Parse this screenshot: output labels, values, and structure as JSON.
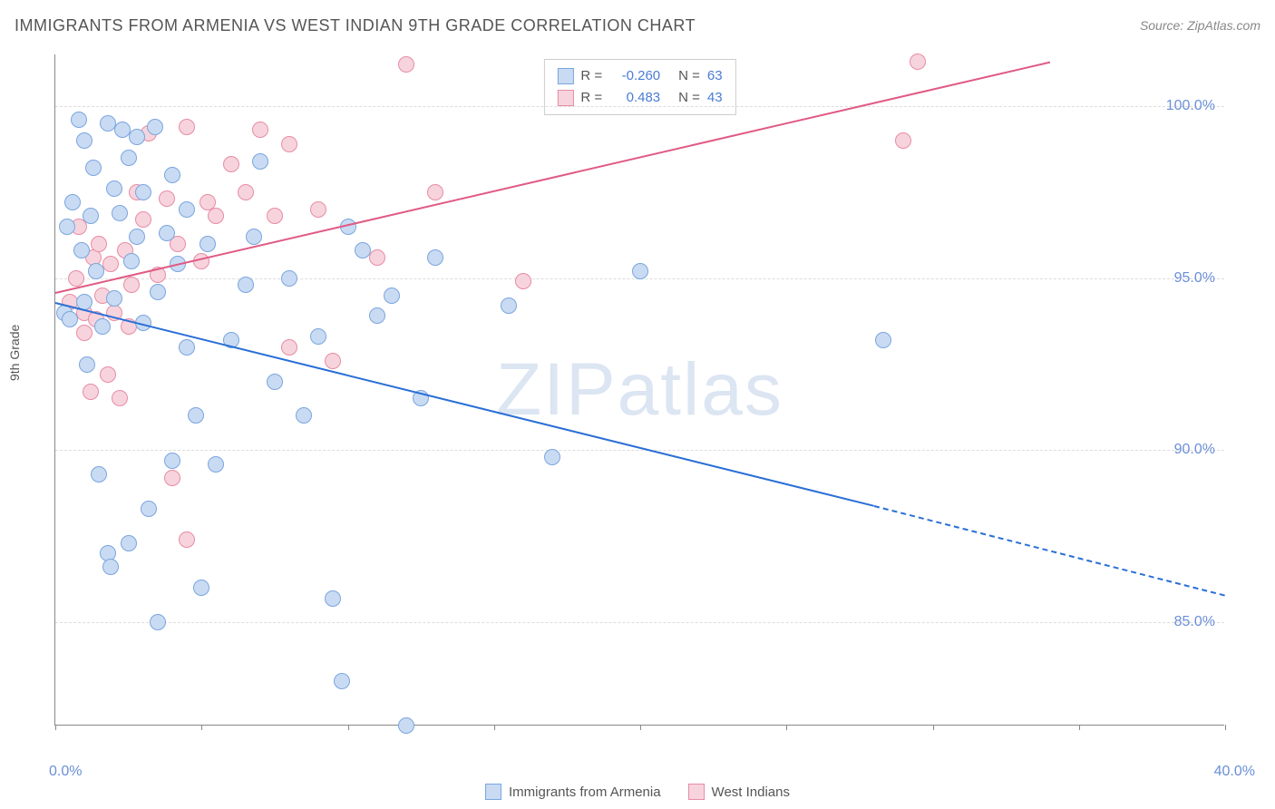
{
  "header": {
    "title": "IMMIGRANTS FROM ARMENIA VS WEST INDIAN 9TH GRADE CORRELATION CHART",
    "source_prefix": "Source: ",
    "source_name": "ZipAtlas.com"
  },
  "axes": {
    "y_label": "9th Grade",
    "x_min": 0.0,
    "x_max": 40.0,
    "y_min": 82.0,
    "y_max": 101.5,
    "y_ticks": [
      85.0,
      90.0,
      95.0,
      100.0
    ],
    "y_tick_labels": [
      "85.0%",
      "90.0%",
      "95.0%",
      "100.0%"
    ],
    "x_tick_positions": [
      0,
      5,
      10,
      15,
      20,
      25,
      30,
      35,
      40
    ],
    "x_labels": {
      "min": "0.0%",
      "max": "40.0%"
    },
    "grid_color": "#dddddd",
    "axis_color": "#888888"
  },
  "watermark": "ZIPatlas",
  "series_a": {
    "name": "Immigrants from Armenia",
    "fill": "#c9dbf3",
    "stroke": "#7aa5de",
    "line_color": "#2a6fd6",
    "marker_radius": 9,
    "R": "-0.260",
    "N": "63",
    "trend": {
      "x1": 0,
      "y1": 94.3,
      "x2": 28,
      "y2": 88.4,
      "dash_to_x": 40,
      "dash_to_y": 85.8
    },
    "points": [
      [
        0.3,
        94.0
      ],
      [
        0.4,
        96.5
      ],
      [
        0.5,
        93.8
      ],
      [
        0.6,
        97.2
      ],
      [
        0.8,
        99.6
      ],
      [
        0.9,
        95.8
      ],
      [
        1.0,
        94.3
      ],
      [
        1.0,
        99.0
      ],
      [
        1.1,
        92.5
      ],
      [
        1.2,
        96.8
      ],
      [
        1.3,
        98.2
      ],
      [
        1.4,
        95.2
      ],
      [
        1.5,
        89.3
      ],
      [
        1.6,
        93.6
      ],
      [
        1.8,
        99.5
      ],
      [
        1.8,
        87.0
      ],
      [
        1.9,
        86.6
      ],
      [
        2.0,
        97.6
      ],
      [
        2.0,
        94.4
      ],
      [
        2.2,
        96.9
      ],
      [
        2.3,
        99.3
      ],
      [
        2.5,
        98.5
      ],
      [
        2.5,
        87.3
      ],
      [
        2.6,
        95.5
      ],
      [
        2.8,
        96.2
      ],
      [
        2.8,
        99.1
      ],
      [
        3.0,
        93.7
      ],
      [
        3.0,
        97.5
      ],
      [
        3.2,
        88.3
      ],
      [
        3.4,
        99.4
      ],
      [
        3.5,
        94.6
      ],
      [
        3.5,
        85.0
      ],
      [
        3.8,
        96.3
      ],
      [
        4.0,
        89.7
      ],
      [
        4.0,
        98.0
      ],
      [
        4.2,
        95.4
      ],
      [
        4.5,
        93.0
      ],
      [
        4.5,
        97.0
      ],
      [
        4.8,
        91.0
      ],
      [
        5.0,
        86.0
      ],
      [
        5.2,
        96.0
      ],
      [
        5.5,
        89.6
      ],
      [
        6.0,
        93.2
      ],
      [
        6.5,
        94.8
      ],
      [
        6.8,
        96.2
      ],
      [
        7.0,
        98.4
      ],
      [
        7.5,
        92.0
      ],
      [
        8.0,
        95.0
      ],
      [
        8.5,
        91.0
      ],
      [
        9.0,
        93.3
      ],
      [
        9.5,
        85.7
      ],
      [
        9.8,
        83.3
      ],
      [
        10.0,
        96.5
      ],
      [
        10.5,
        95.8
      ],
      [
        11.0,
        93.9
      ],
      [
        11.5,
        94.5
      ],
      [
        12.0,
        82.0
      ],
      [
        12.5,
        91.5
      ],
      [
        13.0,
        95.6
      ],
      [
        15.5,
        94.2
      ],
      [
        17.0,
        89.8
      ],
      [
        20.0,
        95.2
      ],
      [
        28.3,
        93.2
      ]
    ]
  },
  "series_b": {
    "name": "West Indians",
    "fill": "#f7d4dd",
    "stroke": "#e78ca4",
    "line_color": "#e05a84",
    "marker_radius": 9,
    "R": "0.483",
    "N": "43",
    "trend": {
      "x1": 0,
      "y1": 94.6,
      "x2": 34,
      "y2": 101.3
    },
    "points": [
      [
        0.5,
        94.3
      ],
      [
        0.7,
        95.0
      ],
      [
        0.8,
        96.5
      ],
      [
        1.0,
        93.4
      ],
      [
        1.0,
        94.0
      ],
      [
        1.2,
        91.7
      ],
      [
        1.3,
        95.6
      ],
      [
        1.4,
        93.8
      ],
      [
        1.5,
        96.0
      ],
      [
        1.6,
        94.5
      ],
      [
        1.8,
        92.2
      ],
      [
        1.9,
        95.4
      ],
      [
        2.0,
        94.0
      ],
      [
        2.2,
        91.5
      ],
      [
        2.4,
        95.8
      ],
      [
        2.5,
        93.6
      ],
      [
        2.6,
        94.8
      ],
      [
        2.8,
        97.5
      ],
      [
        3.0,
        96.7
      ],
      [
        3.2,
        99.2
      ],
      [
        3.5,
        95.1
      ],
      [
        3.8,
        97.3
      ],
      [
        4.0,
        89.2
      ],
      [
        4.2,
        96.0
      ],
      [
        4.5,
        99.4
      ],
      [
        4.5,
        87.4
      ],
      [
        5.0,
        95.5
      ],
      [
        5.2,
        97.2
      ],
      [
        5.5,
        96.8
      ],
      [
        6.0,
        98.3
      ],
      [
        6.5,
        97.5
      ],
      [
        7.0,
        99.3
      ],
      [
        7.5,
        96.8
      ],
      [
        8.0,
        98.9
      ],
      [
        8.0,
        93.0
      ],
      [
        9.0,
        97.0
      ],
      [
        9.5,
        92.6
      ],
      [
        11.0,
        95.6
      ],
      [
        12.0,
        101.2
      ],
      [
        13.0,
        97.5
      ],
      [
        16.0,
        94.9
      ],
      [
        29.5,
        101.3
      ],
      [
        29.0,
        99.0
      ]
    ]
  },
  "legend_top": {
    "r_label": "R =",
    "n_label": "N ="
  },
  "legend_bottom": {
    "a_label": "Immigrants from Armenia",
    "b_label": "West Indians"
  }
}
